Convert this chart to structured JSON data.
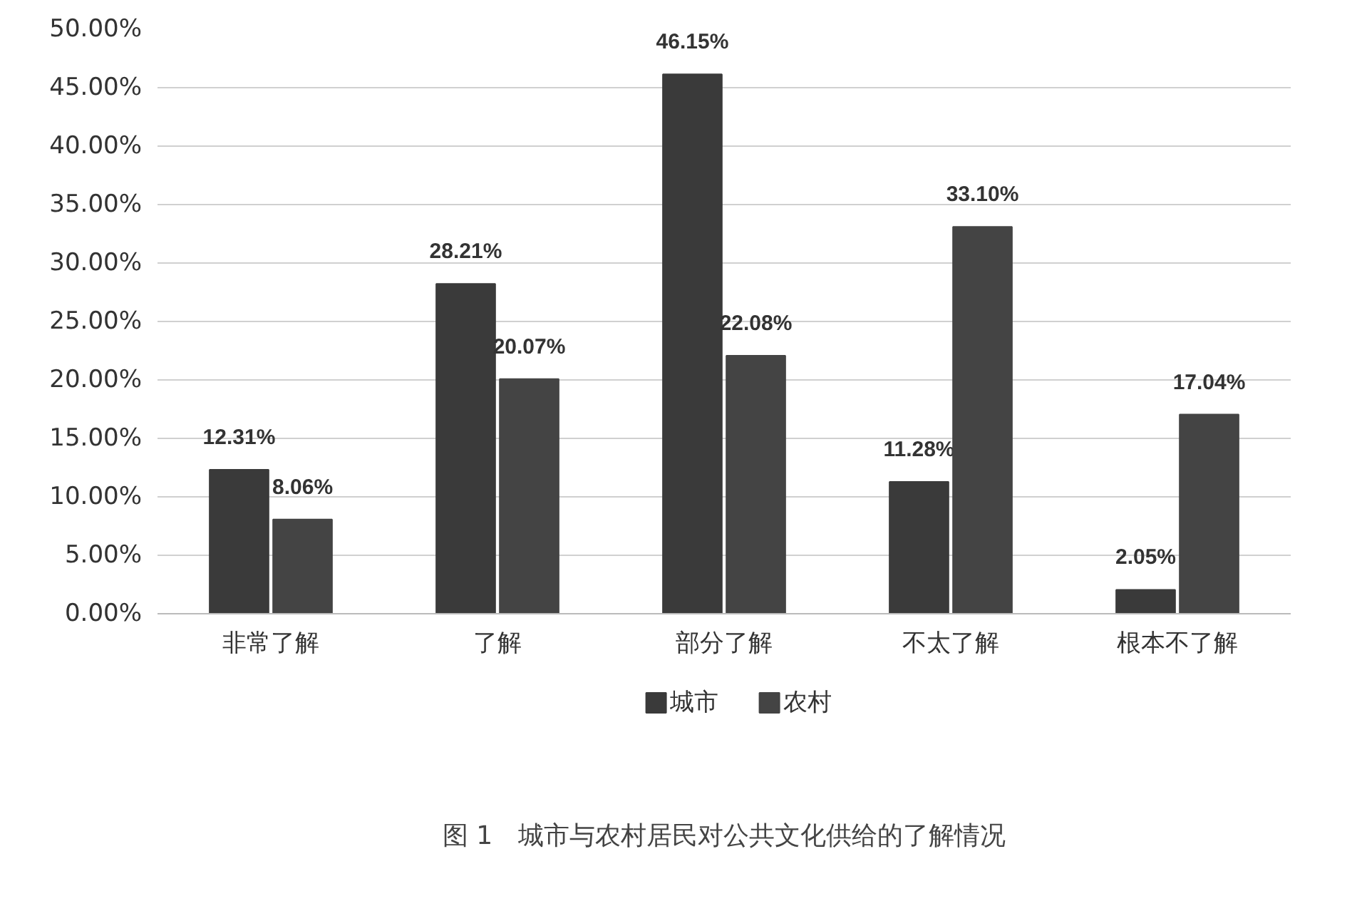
{
  "chart_data": {
    "type": "bar",
    "title": "图 1　城市与农村居民对公共文化供给的了解情况",
    "categories": [
      "非常了解",
      "了解",
      "部分了解",
      "不太了解",
      "根本不了解"
    ],
    "series": [
      {
        "name": "城市",
        "color": "#3a3a3a",
        "values": [
          12.31,
          28.21,
          46.15,
          11.28,
          2.05
        ],
        "value_labels": [
          "12.31%",
          "28.21%",
          "46.15%",
          "11.28%",
          "2.05%"
        ]
      },
      {
        "name": "农村",
        "color": "#444444",
        "values": [
          8.06,
          20.07,
          22.08,
          33.1,
          17.04
        ],
        "value_labels": [
          "8.06%",
          "20.07%",
          "22.08%",
          "33.10%",
          "17.04%"
        ]
      }
    ],
    "ylim": [
      0,
      50
    ],
    "yticks": [
      {
        "value": 0,
        "label": "0.00%"
      },
      {
        "value": 5,
        "label": "5.00%"
      },
      {
        "value": 10,
        "label": "10.00%"
      },
      {
        "value": 15,
        "label": "15.00%"
      },
      {
        "value": 20,
        "label": "20.00%"
      },
      {
        "value": 25,
        "label": "25.00%"
      },
      {
        "value": 30,
        "label": "30.00%"
      },
      {
        "value": 35,
        "label": "35.00%"
      },
      {
        "value": 40,
        "label": "40.00%"
      },
      {
        "value": 45,
        "label": "45.00%"
      },
      {
        "value": 50,
        "label": "50.00%"
      }
    ],
    "grid": "y",
    "legend": "bottom"
  }
}
